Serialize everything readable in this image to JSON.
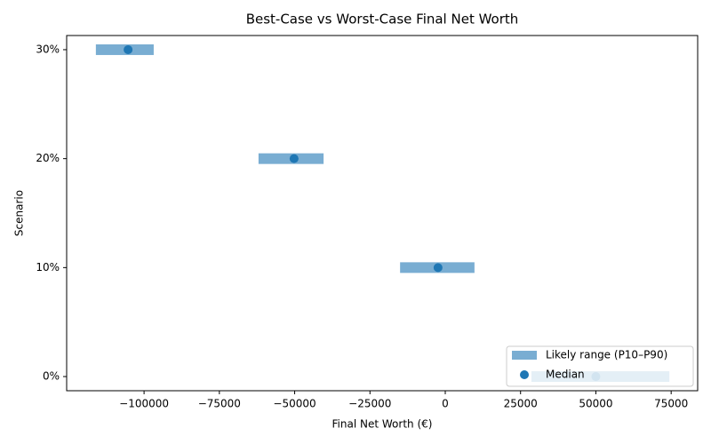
{
  "chart_data": {
    "type": "range",
    "title": "Best-Case vs Worst-Case Final Net Worth",
    "x_label": "Final Net Worth (€)",
    "y_label": "Scenario",
    "categories": [
      "0%",
      "10%",
      "20%",
      "30%"
    ],
    "series": [
      {
        "name": "Likely range (P10–P90)",
        "color": "#1f77b4",
        "low": [
          28600,
          -15000,
          -62000,
          -116000
        ],
        "high": [
          74400,
          9700,
          -40400,
          -96800
        ]
      },
      {
        "name": "Median",
        "color": "#1f77b4",
        "values": [
          50000,
          -2400,
          -50200,
          -105300
        ]
      }
    ],
    "xlim": [
      -125700,
      83800
    ],
    "xticks": [
      {
        "value": -100000,
        "label": "−100000"
      },
      {
        "value": -75000,
        "label": "−75000"
      },
      {
        "value": -50000,
        "label": "−50000"
      },
      {
        "value": -25000,
        "label": "−25000"
      },
      0,
      25000,
      50000,
      75000
    ],
    "legend": "lower right"
  }
}
